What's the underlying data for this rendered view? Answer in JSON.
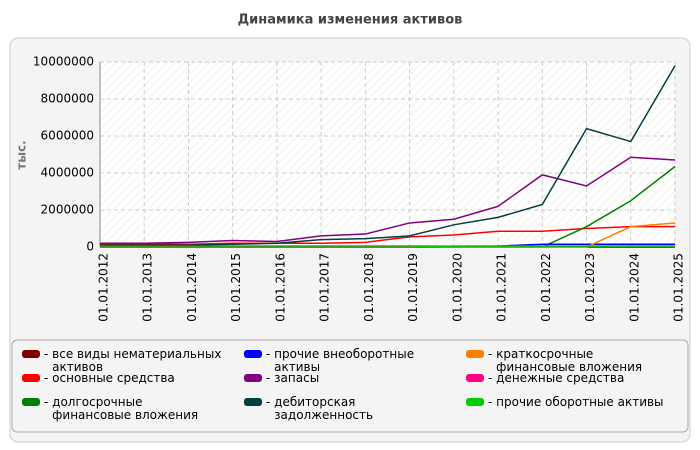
{
  "chart_data": {
    "type": "line",
    "title": "Динамика изменения активов",
    "y_label": "тыс.",
    "x": [
      "01.01.2012",
      "01.01.2013",
      "01.01.2014",
      "01.01.2015",
      "01.01.2016",
      "01.01.2017",
      "01.01.2018",
      "01.01.2019",
      "01.01.2020",
      "01.01.2021",
      "01.01.2022",
      "01.01.2023",
      "01.01.2024",
      "01.01.2025"
    ],
    "ylim": [
      0,
      10000000
    ],
    "yticks": [
      0,
      2000000,
      4000000,
      6000000,
      8000000,
      10000000
    ],
    "grid": true,
    "series": [
      {
        "name": "все виды нематериальных активов",
        "color": "#800000",
        "values": [
          0,
          0,
          0,
          0,
          0,
          0,
          0,
          0,
          0,
          0,
          0,
          0,
          0,
          0
        ]
      },
      {
        "name": "основные средства",
        "color": "#ff0000",
        "values": [
          150000,
          150000,
          150000,
          200000,
          200000,
          200000,
          250000,
          550000,
          650000,
          850000,
          850000,
          1000000,
          1100000,
          1100000
        ]
      },
      {
        "name": "долгосрочные финансовые вложения",
        "color": "#008000",
        "values": [
          0,
          0,
          0,
          0,
          0,
          0,
          0,
          0,
          0,
          0,
          0,
          1100000,
          2500000,
          4350000
        ]
      },
      {
        "name": "прочие внеоборотные активы",
        "color": "#0000ff",
        "values": [
          0,
          0,
          0,
          0,
          0,
          0,
          0,
          0,
          0,
          50000,
          150000,
          150000,
          150000,
          150000
        ]
      },
      {
        "name": "запасы",
        "color": "#800080",
        "values": [
          200000,
          200000,
          250000,
          350000,
          300000,
          600000,
          700000,
          1300000,
          1500000,
          2200000,
          3900000,
          3300000,
          4850000,
          4700000
        ]
      },
      {
        "name": "дебиторская задолженность",
        "color": "#004040",
        "values": [
          100000,
          100000,
          100000,
          150000,
          200000,
          400000,
          450000,
          600000,
          1200000,
          1600000,
          2300000,
          6400000,
          5700000,
          9800000
        ]
      },
      {
        "name": "краткосрочные финансовые вложения",
        "color": "#ff8000",
        "values": [
          0,
          0,
          0,
          0,
          0,
          0,
          0,
          0,
          0,
          0,
          0,
          0,
          1100000,
          1300000
        ]
      },
      {
        "name": "денежные средства",
        "color": "#ff0080",
        "values": [
          50000,
          50000,
          50000,
          50000,
          50000,
          50000,
          50000,
          50000,
          50000,
          50000,
          50000,
          50000,
          50000,
          50000
        ]
      },
      {
        "name": "прочие оборотные активы",
        "color": "#00cc00",
        "values": [
          0,
          0,
          0,
          0,
          0,
          0,
          0,
          0,
          50000,
          50000,
          50000,
          50000,
          50000,
          50000
        ]
      }
    ]
  }
}
